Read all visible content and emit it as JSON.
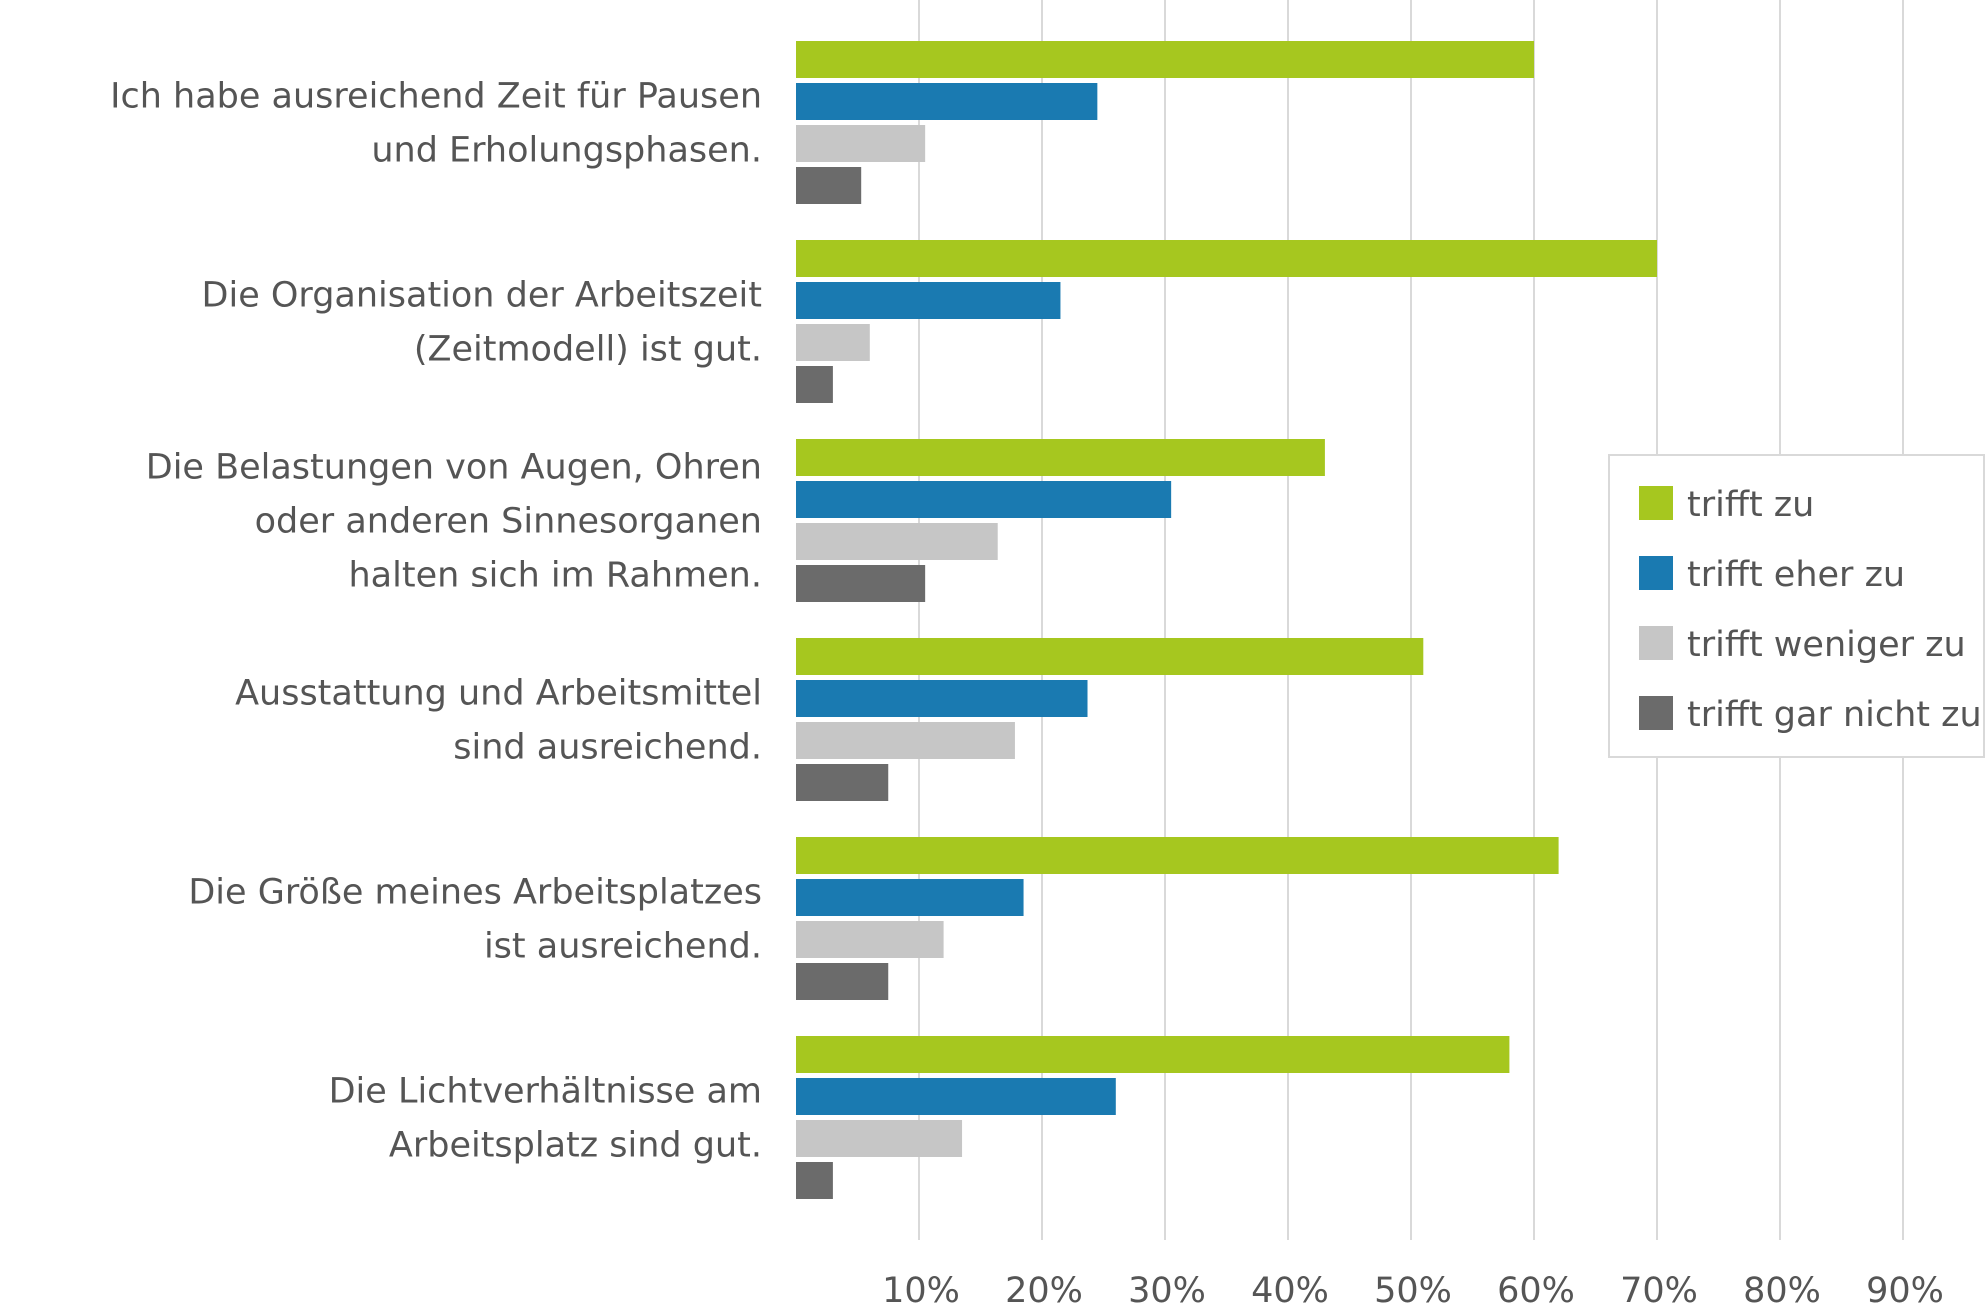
{
  "chart_data": {
    "type": "bar",
    "orientation": "horizontal",
    "title": "",
    "xlabel": "",
    "ylabel": "",
    "xlim": [
      0,
      90
    ],
    "x_ticks": [
      10,
      20,
      30,
      40,
      50,
      60,
      70,
      80,
      90
    ],
    "tick_suffix": "%",
    "grid": true,
    "legend_position": "right",
    "categories": [
      [
        "Ich habe ausreichend Zeit für Pausen",
        "und Erholungsphasen."
      ],
      [
        "Die Organisation der Arbeitszeit",
        "(Zeitmodell) ist gut."
      ],
      [
        "Die Belastungen von Augen, Ohren",
        "oder anderen Sinnesorganen",
        "halten sich im Rahmen."
      ],
      [
        "Ausstattung und Arbeitsmittel",
        "sind ausreichend."
      ],
      [
        "Die Größe meines Arbeitsplatzes",
        "ist ausreichend."
      ],
      [
        "Die Lichtverhältnisse am",
        "Arbeitsplatz sind gut."
      ]
    ],
    "series": [
      {
        "name": "trifft zu",
        "color": "#a6c71f",
        "values": [
          60,
          70,
          43,
          51,
          62,
          58
        ]
      },
      {
        "name": "trifft eher zu",
        "color": "#1a7ab1",
        "values": [
          24.5,
          21.5,
          30.5,
          23.7,
          18.5,
          26
        ]
      },
      {
        "name": "trifft weniger zu",
        "color": "#c6c6c6",
        "values": [
          10.5,
          6,
          16.4,
          17.8,
          12,
          13.5
        ]
      },
      {
        "name": "trifft gar nicht zu",
        "color": "#6b6b6b",
        "values": [
          5.3,
          3,
          10.5,
          7.5,
          7.5,
          3
        ]
      }
    ]
  }
}
